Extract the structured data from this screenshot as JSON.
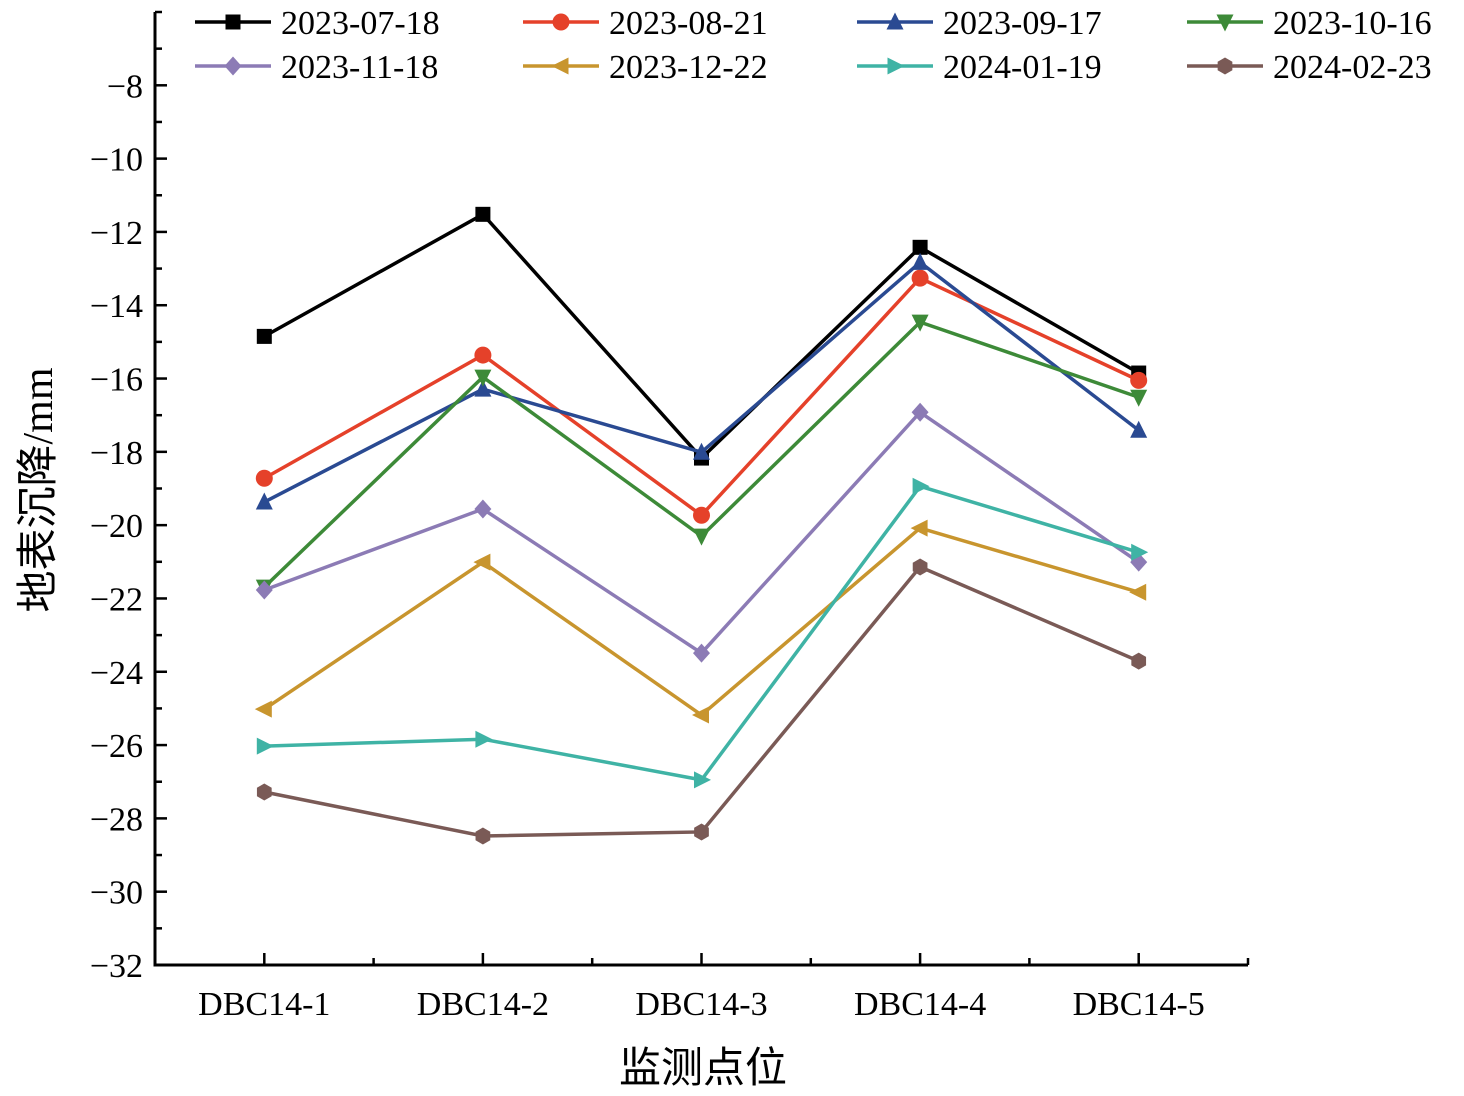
{
  "chart_data": {
    "type": "line",
    "title": "",
    "xlabel": "监测点位",
    "ylabel": "地表沉降/mm",
    "categories": [
      "DBC14-1",
      "DBC14-2",
      "DBC14-3",
      "DBC14-4",
      "DBC14-5"
    ],
    "ylim": [
      -32,
      -6
    ],
    "yticks": [
      -32,
      -30,
      -28,
      -26,
      -24,
      -22,
      -20,
      -18,
      -16,
      -14,
      -12,
      -10,
      -8
    ],
    "ytick_labels": [
      "−32",
      "−30",
      "−28",
      "−26",
      "−24",
      "−22",
      "−20",
      "−18",
      "−16",
      "−14",
      "−12",
      "−10",
      "−8"
    ],
    "grid": false,
    "legend_placement": "top",
    "series": [
      {
        "name": "2023-07-18",
        "color": "#000000",
        "marker": "square",
        "values": [
          -14.85,
          -11.52,
          -18.17,
          -12.42,
          -15.85
        ]
      },
      {
        "name": "2023-08-21",
        "color": "#e5412a",
        "marker": "circle",
        "values": [
          -18.72,
          -15.36,
          -19.73,
          -13.26,
          -16.05
        ]
      },
      {
        "name": "2023-09-17",
        "color": "#2a4a92",
        "marker": "triangle-up",
        "values": [
          -19.37,
          -16.29,
          -18.01,
          -12.83,
          -17.41
        ]
      },
      {
        "name": "2023-10-16",
        "color": "#3d8a38",
        "marker": "triangle-down",
        "values": [
          -21.69,
          -15.96,
          -20.3,
          -14.46,
          -16.51
        ]
      },
      {
        "name": "2023-11-18",
        "color": "#8c7bb5",
        "marker": "diamond",
        "values": [
          -21.77,
          -19.56,
          -23.49,
          -16.92,
          -21.01
        ]
      },
      {
        "name": "2023-12-22",
        "color": "#c8952e",
        "marker": "triangle-left",
        "values": [
          -25.02,
          -21.01,
          -25.18,
          -20.08,
          -21.83
        ]
      },
      {
        "name": "2024-01-19",
        "color": "#3fb3a5",
        "marker": "triangle-right",
        "values": [
          -26.03,
          -25.84,
          -26.95,
          -18.94,
          -20.74
        ]
      },
      {
        "name": "2024-02-23",
        "color": "#7a5a56",
        "marker": "hexagon",
        "values": [
          -27.28,
          -28.48,
          -28.37,
          -21.14,
          -23.71
        ]
      }
    ]
  }
}
